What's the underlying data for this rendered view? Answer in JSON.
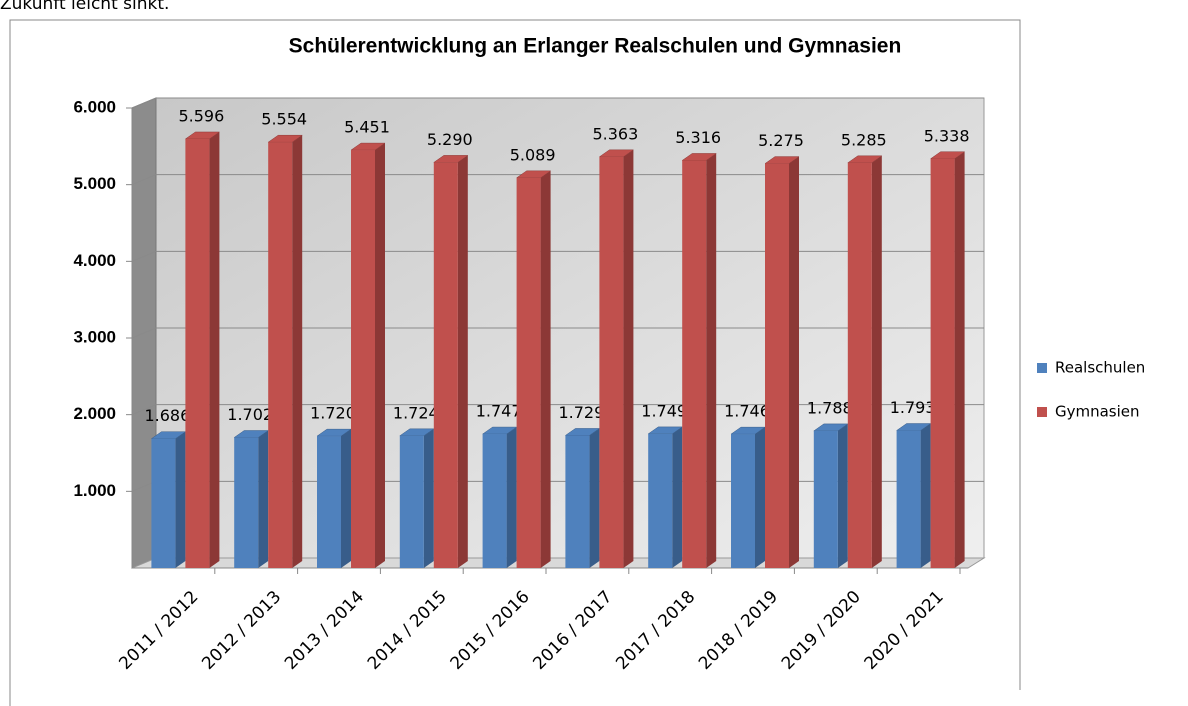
{
  "above_text": "Zukunft leicht sinkt.",
  "chart_data": {
    "type": "bar3d",
    "title": "Schülerentwicklung an Erlanger Realschulen und Gymnasien",
    "categories": [
      "2011 / 2012",
      "2012 / 2013",
      "2013 / 2014",
      "2014 / 2015",
      "2015 / 2016",
      "2016 / 2017",
      "2017 / 2018",
      "2018 / 2019",
      "2019 / 2020",
      "2020 / 2021"
    ],
    "series": [
      {
        "name": "Realschulen",
        "color": "#4f81bd",
        "side": "#385d8a",
        "values": [
          1686,
          1702,
          1720,
          1724,
          1747,
          1729,
          1749,
          1746,
          1788,
          1793
        ],
        "value_labels": [
          "1.686",
          "1.702",
          "1.720",
          "1.724",
          "1.747",
          "1.729",
          "1.749",
          "1.746",
          "1.788",
          "1.793"
        ]
      },
      {
        "name": "Gymnasien",
        "color": "#c0504d",
        "side": "#8c3836",
        "values": [
          5596,
          5554,
          5451,
          5290,
          5089,
          5363,
          5316,
          5275,
          5285,
          5338
        ],
        "value_labels": [
          "5.596",
          "5.554",
          "5.451",
          "5.290",
          "5.089",
          "5.363",
          "5.316",
          "5.275",
          "5.285",
          "5.338"
        ]
      }
    ],
    "ylim": [
      0,
      6000
    ],
    "yticks": [
      {
        "value": 1000,
        "label": "1.000"
      },
      {
        "value": 2000,
        "label": "2.000"
      },
      {
        "value": 3000,
        "label": "3.000"
      },
      {
        "value": 4000,
        "label": "4.000"
      },
      {
        "value": 5000,
        "label": "5.000"
      },
      {
        "value": 6000,
        "label": "6.000"
      }
    ],
    "grid": true,
    "legend": "right"
  }
}
